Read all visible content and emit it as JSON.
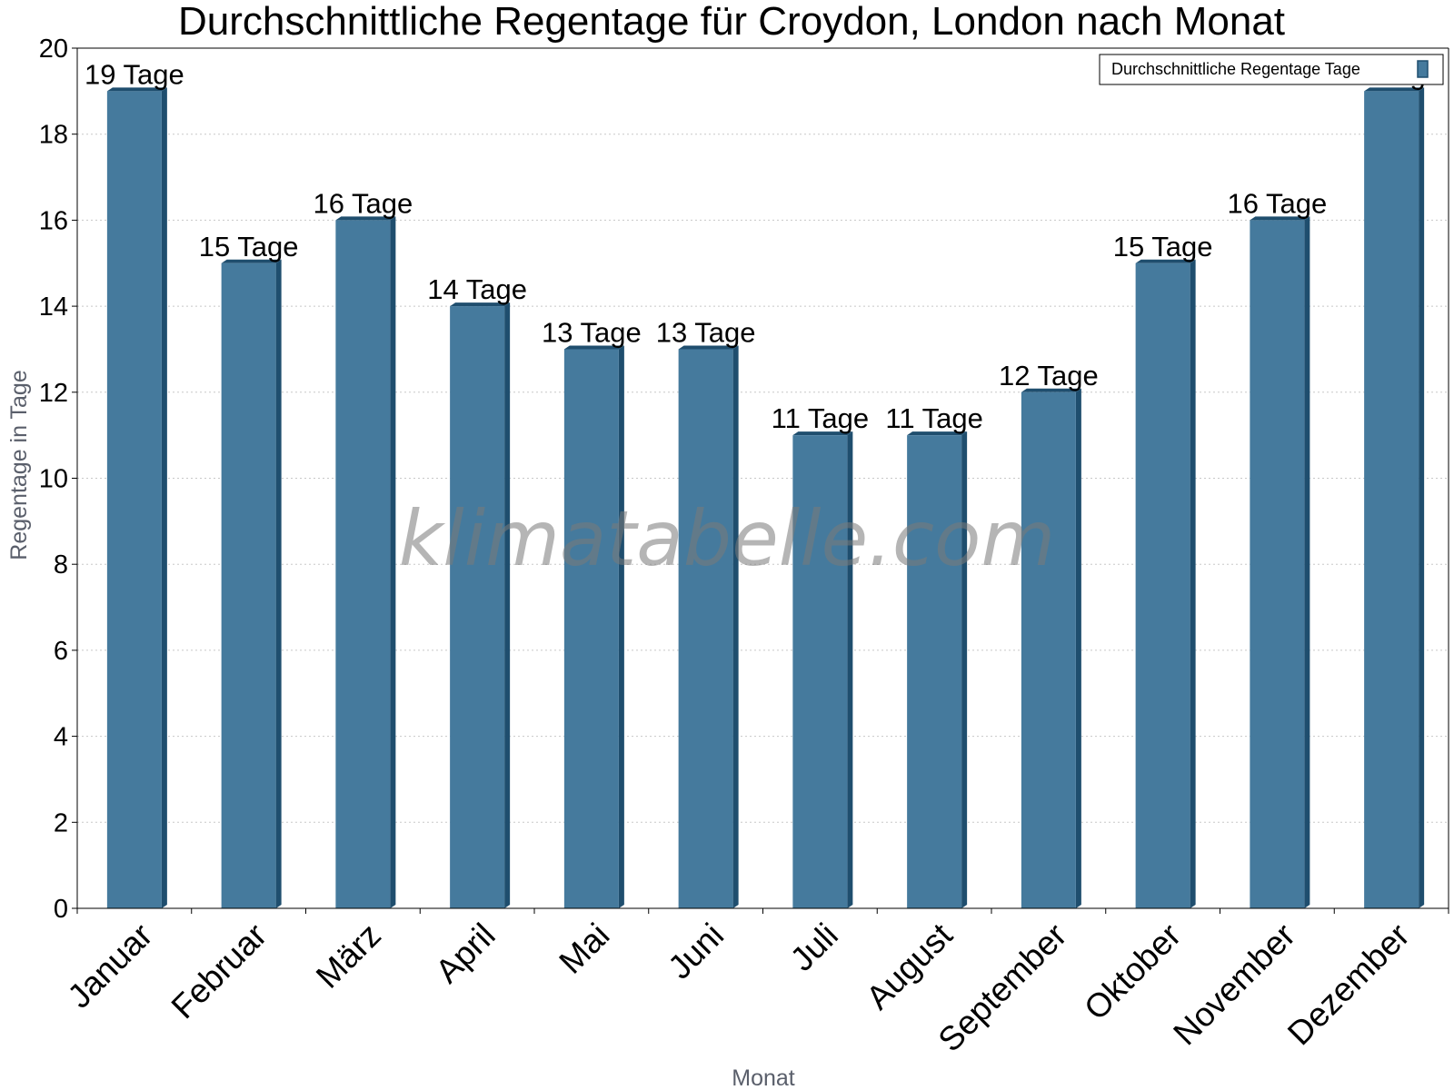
{
  "watermark": "klimatabelle.com",
  "chart_data": {
    "type": "bar",
    "title": "Durchschnittliche Regentage für Croydon, London nach Monat",
    "xlabel": "Monat",
    "ylabel": "Regentage in Tage",
    "ylim": [
      0,
      20
    ],
    "yticks": [
      0,
      2,
      4,
      6,
      8,
      10,
      12,
      14,
      16,
      18,
      20
    ],
    "grid": "horizontal dotted",
    "legend_position": "top-right",
    "categories": [
      "Januar",
      "Februar",
      "März",
      "April",
      "Mai",
      "Juni",
      "Juli",
      "August",
      "September",
      "Oktober",
      "November",
      "Dezember"
    ],
    "series": [
      {
        "name": "Durchschnittliche Regentage Tage",
        "color": "#457a9d",
        "values": [
          19,
          15,
          16,
          14,
          13,
          13,
          11,
          11,
          12,
          15,
          16,
          19
        ],
        "data_labels": [
          "19 Tage",
          "15 Tage",
          "16 Tage",
          "14 Tage",
          "13 Tage",
          "13 Tage",
          "11 Tage",
          "11 Tage",
          "12 Tage",
          "15 Tage",
          "16 Tage",
          "19 Tage"
        ]
      }
    ]
  }
}
